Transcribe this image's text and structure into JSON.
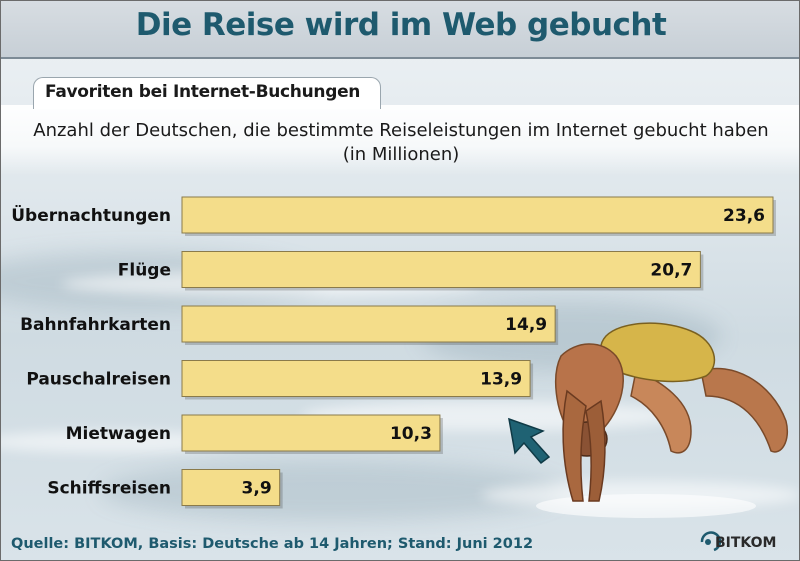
{
  "title": "Die Reise wird im Web gebucht",
  "subtitle": "Favoriten bei Internet-Buchungen",
  "description_line1": "Anzahl der Deutschen, die bestimmte Reiseleistungen im Internet gebucht haben",
  "description_line2": "(in Millionen)",
  "source": "Quelle: BITKOM, Basis: Deutsche ab 14 Jahren; Stand: Juni 2012",
  "logo_text": "BITKOM",
  "colors": {
    "title": "#1e5a6e",
    "bar_fill": "#f4dd8a",
    "bar_stroke": "#8a7a4a",
    "source": "#1e5a6e",
    "cursor": "#1f6273"
  },
  "chart_data": {
    "type": "bar",
    "orientation": "horizontal",
    "title": "Die Reise wird im Web gebucht",
    "subtitle": "Favoriten bei Internet-Buchungen",
    "ylabel": "",
    "xlabel": "",
    "unit": "Millionen",
    "categories": [
      "Übernachtungen",
      "Flüge",
      "Bahnfahrkarten",
      "Pauschalreisen",
      "Mietwagen",
      "Schiffsreisen"
    ],
    "values": [
      23.6,
      20.7,
      14.9,
      13.9,
      10.3,
      3.9
    ],
    "value_labels": [
      "23,6",
      "20,7",
      "14,9",
      "13,9",
      "10,3",
      "3,9"
    ],
    "xlim": [
      0,
      23.6
    ],
    "grid": false,
    "legend": "none"
  }
}
